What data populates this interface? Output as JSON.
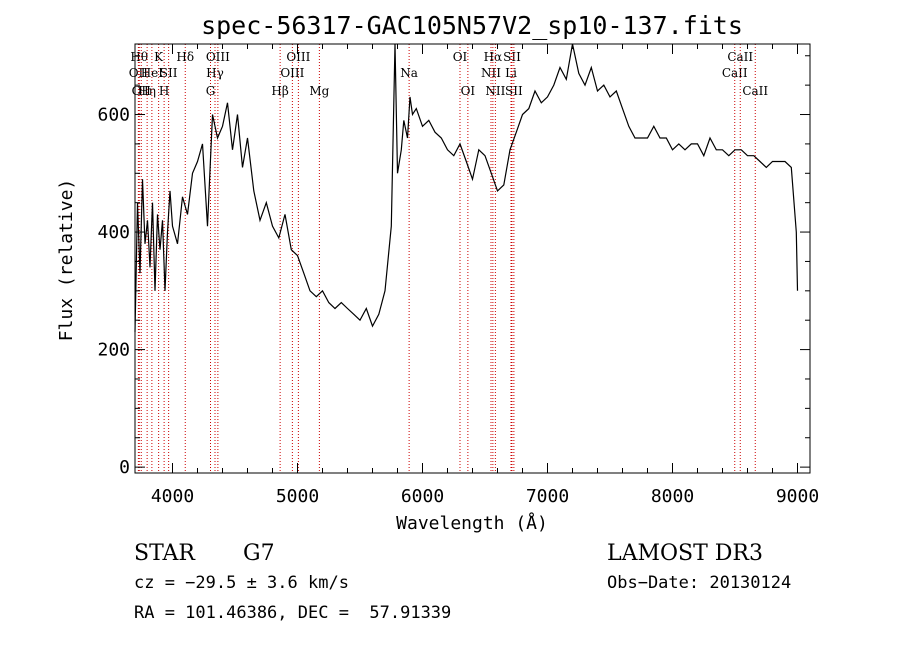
{
  "chart_data": {
    "type": "line",
    "title": "spec-56317-GAC105N57V2_sp10-137.fits",
    "xlabel": "Wavelength (Å)",
    "ylabel": "Flux (relative)",
    "xlim": [
      3700,
      9100
    ],
    "ylim": [
      -10,
      720
    ],
    "xticks": [
      4000,
      5000,
      6000,
      7000,
      8000,
      9000
    ],
    "yticks": [
      0,
      200,
      400,
      600
    ],
    "grid": false,
    "line_color": "#000000",
    "marker_color": "#cc0000",
    "series": [
      {
        "x": [
          3700,
          3720,
          3740,
          3760,
          3780,
          3800,
          3820,
          3840,
          3860,
          3880,
          3900,
          3920,
          3940,
          3960,
          3980,
          4000,
          4040,
          4080,
          4120,
          4160,
          4200,
          4240,
          4280,
          4320,
          4360,
          4400,
          4440,
          4480,
          4520,
          4560,
          4600,
          4650,
          4700,
          4750,
          4800,
          4850,
          4900,
          4950,
          5000,
          5050,
          5100,
          5150,
          5200,
          5250,
          5300,
          5350,
          5400,
          5450,
          5500,
          5550,
          5600,
          5650,
          5700,
          5750,
          5780,
          5800,
          5830,
          5850,
          5880,
          5900,
          5920,
          5950,
          6000,
          6050,
          6100,
          6150,
          6200,
          6250,
          6300,
          6350,
          6400,
          6450,
          6500,
          6550,
          6600,
          6650,
          6700,
          6750,
          6800,
          6850,
          6900,
          6950,
          7000,
          7050,
          7100,
          7150,
          7200,
          7250,
          7300,
          7350,
          7400,
          7450,
          7500,
          7550,
          7600,
          7650,
          7700,
          7750,
          7800,
          7850,
          7900,
          7950,
          8000,
          8050,
          8100,
          8150,
          8200,
          8250,
          8300,
          8350,
          8400,
          8450,
          8500,
          8550,
          8600,
          8650,
          8700,
          8750,
          8800,
          8850,
          8900,
          8950,
          8990,
          9000
        ],
        "y": [
          230,
          450,
          330,
          490,
          380,
          420,
          340,
          450,
          300,
          430,
          370,
          420,
          300,
          400,
          470,
          410,
          380,
          460,
          430,
          500,
          520,
          550,
          410,
          600,
          560,
          580,
          620,
          540,
          600,
          510,
          560,
          470,
          420,
          450,
          410,
          390,
          430,
          370,
          360,
          330,
          300,
          290,
          300,
          280,
          270,
          280,
          270,
          260,
          250,
          270,
          240,
          260,
          300,
          410,
          720,
          500,
          540,
          590,
          560,
          630,
          600,
          610,
          580,
          590,
          570,
          560,
          540,
          530,
          550,
          520,
          490,
          540,
          530,
          500,
          470,
          480,
          540,
          570,
          600,
          610,
          640,
          620,
          630,
          650,
          680,
          660,
          720,
          670,
          650,
          680,
          640,
          650,
          630,
          640,
          610,
          580,
          560,
          560,
          560,
          580,
          560,
          560,
          540,
          550,
          540,
          550,
          550,
          530,
          560,
          540,
          540,
          530,
          540,
          540,
          530,
          530,
          520,
          510,
          520,
          520,
          520,
          510,
          400,
          300
        ]
      }
    ],
    "lines": [
      {
        "x": 3734,
        "label": "Hθ",
        "row": 1
      },
      {
        "x": 3727,
        "label": "OII",
        "row": 2
      },
      {
        "x": 3750,
        "label": "OII",
        "row": 3
      },
      {
        "x": 3797,
        "label": "Hη",
        "row": 3
      },
      {
        "x": 3835,
        "label": "HeI",
        "row": 2
      },
      {
        "x": 3889,
        "label": "K",
        "row": 1
      },
      {
        "x": 3933,
        "label": "H",
        "row": 3
      },
      {
        "x": 3969,
        "label": "SII",
        "row": 2
      },
      {
        "x": 4102,
        "label": "Hδ",
        "row": 1
      },
      {
        "x": 4304,
        "label": "G",
        "row": 3
      },
      {
        "x": 4340,
        "label": "Hγ",
        "row": 2
      },
      {
        "x": 4363,
        "label": "OIII",
        "row": 1
      },
      {
        "x": 4861,
        "label": "Hβ",
        "row": 3
      },
      {
        "x": 4959,
        "label": "OIII",
        "row": 2
      },
      {
        "x": 5007,
        "label": "OIII",
        "row": 1
      },
      {
        "x": 5175,
        "label": "Mg",
        "row": 3
      },
      {
        "x": 5893,
        "label": "Na",
        "row": 2
      },
      {
        "x": 6300,
        "label": "OI",
        "row": 1
      },
      {
        "x": 6363,
        "label": "OI",
        "row": 3
      },
      {
        "x": 6548,
        "label": "NII",
        "row": 2
      },
      {
        "x": 6563,
        "label": "Hα",
        "row": 1
      },
      {
        "x": 6583,
        "label": "NII",
        "row": 3
      },
      {
        "x": 6716,
        "label": "SII",
        "row": 1
      },
      {
        "x": 6708,
        "label": "Li",
        "row": 2
      },
      {
        "x": 6731,
        "label": "SII",
        "row": 3
      },
      {
        "x": 8498,
        "label": "CaII",
        "row": 2
      },
      {
        "x": 8542,
        "label": "CaII",
        "row": 1
      },
      {
        "x": 8662,
        "label": "CaII",
        "row": 3
      }
    ]
  },
  "info": {
    "class": "STAR",
    "subclass": "G7",
    "survey": "LAMOST DR3",
    "cz": "cz = −29.5 ± 3.6 km/s",
    "obs_date": "Obs−Date: 20130124",
    "coords": "RA = 101.46386, DEC =  57.91339"
  }
}
